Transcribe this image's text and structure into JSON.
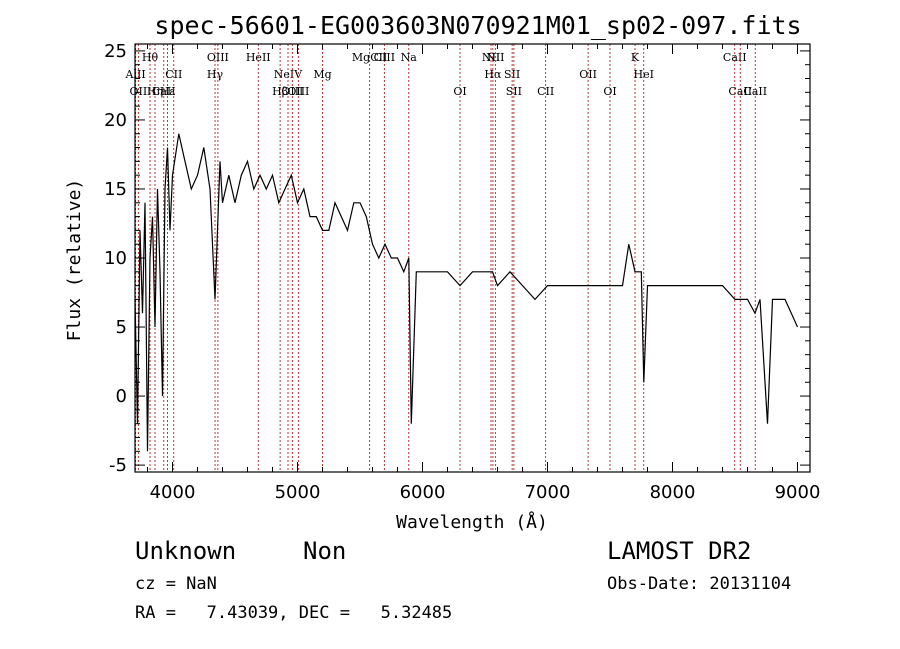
{
  "chart_data": {
    "type": "line",
    "title": "spec-56601-EG003603N070921M01_sp02-097.fits",
    "xlabel": "Wavelength (Å)",
    "ylabel": "Flux (relative)",
    "xlim": [
      3700,
      9100
    ],
    "ylim": [
      -5.5,
      25.5
    ],
    "xticks": [
      4000,
      5000,
      6000,
      7000,
      8000,
      9000
    ],
    "yticks": [
      -5,
      0,
      5,
      10,
      15,
      20,
      25
    ],
    "grid": false,
    "series": [
      {
        "x": [
          3700,
          3720,
          3740,
          3760,
          3780,
          3800,
          3820,
          3840,
          3860,
          3880,
          3900,
          3920,
          3940,
          3960,
          3980,
          4000,
          4050,
          4100,
          4150,
          4200,
          4250,
          4300,
          4340,
          4380,
          4400,
          4450,
          4500,
          4550,
          4600,
          4650,
          4700,
          4750,
          4800,
          4850,
          4900,
          4950,
          5000,
          5050,
          5100,
          5150,
          5200,
          5250,
          5300,
          5350,
          5400,
          5450,
          5500,
          5550,
          5600,
          5650,
          5700,
          5750,
          5800,
          5850,
          5890,
          5910,
          5950,
          6000,
          6100,
          6200,
          6300,
          6400,
          6500,
          6560,
          6600,
          6700,
          6800,
          6900,
          7000,
          7100,
          7200,
          7300,
          7400,
          7500,
          7600,
          7650,
          7700,
          7750,
          7770,
          7800,
          7900,
          8000,
          8100,
          8200,
          8300,
          8400,
          8500,
          8600,
          8660,
          8700,
          8760,
          8800,
          8850,
          8900,
          8950,
          9000
        ],
        "y": [
          7,
          -2,
          12,
          6,
          14,
          -4,
          10,
          13,
          5,
          15,
          9,
          0,
          15,
          18,
          12,
          16,
          19,
          17,
          15,
          16,
          18,
          15,
          7,
          17,
          14,
          16,
          14,
          16,
          17,
          15,
          16,
          15,
          16,
          14,
          15,
          16,
          14,
          15,
          13,
          13,
          12,
          12,
          14,
          13,
          12,
          14,
          14,
          13,
          11,
          10,
          11,
          10,
          10,
          9,
          10,
          -2,
          9,
          9,
          9,
          9,
          8,
          9,
          9,
          9,
          8,
          9,
          8,
          7,
          8,
          8,
          8,
          8,
          8,
          8,
          8,
          11,
          9,
          9,
          1,
          8,
          8,
          8,
          8,
          8,
          8,
          8,
          7,
          7,
          6,
          7,
          -2,
          7,
          7,
          7,
          6,
          5
        ]
      }
    ],
    "line_markers": [
      {
        "w": 3705,
        "label": "AlII",
        "row": 1
      },
      {
        "w": 3727,
        "label": "OII",
        "row": 2
      },
      {
        "w": 3820,
        "label": "Hθ",
        "row": 0
      },
      {
        "w": 3860,
        "label": "Hη",
        "row": 2
      },
      {
        "w": 3930,
        "label": "CaII",
        "row": 2
      },
      {
        "w": 3960,
        "label": "Hε",
        "row": 2
      },
      {
        "w": 4010,
        "label": "CII",
        "row": 1
      },
      {
        "w": 4340,
        "label": "Hγ",
        "row": 1
      },
      {
        "w": 4363,
        "label": "OIII",
        "row": 0
      },
      {
        "w": 4686,
        "label": "HeII",
        "row": 0
      },
      {
        "w": 4861,
        "label": "Hβ",
        "row": 2
      },
      {
        "w": 4924,
        "label": "NeIV",
        "row": 1
      },
      {
        "w": 4959,
        "label": "OIII",
        "row": 2
      },
      {
        "w": 5007,
        "label": "OIII",
        "row": 2
      },
      {
        "w": 5200,
        "label": "Mg",
        "row": 1
      },
      {
        "w": 5577,
        "label": "MgCII",
        "row": 0
      },
      {
        "w": 5695,
        "label": "CIII",
        "row": 0
      },
      {
        "w": 5890,
        "label": "Na",
        "row": 0
      },
      {
        "w": 6300,
        "label": "OI",
        "row": 2
      },
      {
        "w": 6548,
        "label": "NII",
        "row": 0
      },
      {
        "w": 6563,
        "label": "Hα",
        "row": 1
      },
      {
        "w": 6583,
        "label": "NII",
        "row": 0
      },
      {
        "w": 6717,
        "label": "SII",
        "row": 1
      },
      {
        "w": 6731,
        "label": "SII",
        "row": 2
      },
      {
        "w": 6985,
        "label": "CII",
        "row": 2
      },
      {
        "w": 7325,
        "label": "OII",
        "row": 1
      },
      {
        "w": 7500,
        "label": "OI",
        "row": 2
      },
      {
        "w": 7700,
        "label": "K",
        "row": 0
      },
      {
        "w": 7770,
        "label": "HeI",
        "row": 1
      },
      {
        "w": 8498,
        "label": "CaII",
        "row": 0
      },
      {
        "w": 8542,
        "label": "CaII",
        "row": 2
      },
      {
        "w": 8662,
        "label": "CaII",
        "row": 2
      }
    ]
  },
  "info": {
    "class_label": "Unknown",
    "subclass_label": "Non",
    "survey": "LAMOST DR2",
    "cz": "cz = NaN",
    "obs_date": "Obs-Date: 20131104",
    "coords": "RA =   7.43039, DEC =   5.32485"
  }
}
